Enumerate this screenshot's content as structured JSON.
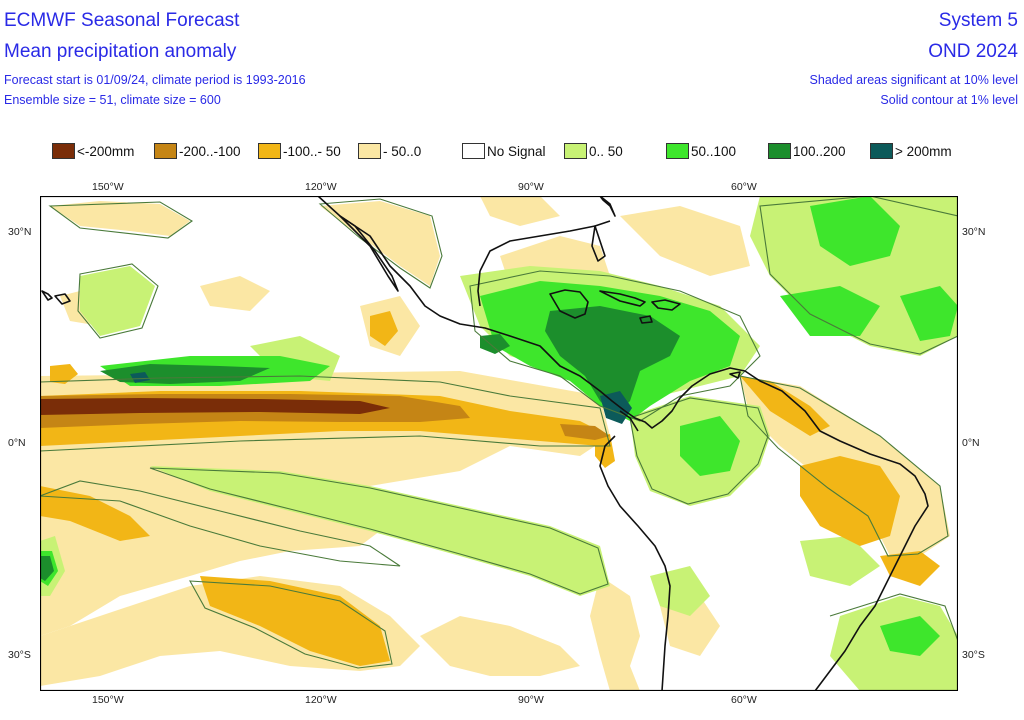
{
  "header": {
    "title": "ECMWF Seasonal Forecast",
    "subtitle": "Mean precipitation anomaly",
    "forecast_info": "Forecast start is 01/09/24, climate period is 1993-2016",
    "ensemble_info": "Ensemble size = 51, climate size = 600",
    "system": "System 5",
    "period": "OND 2024",
    "significance": "Shaded areas significant at 10% level",
    "contour_note": "Solid contour at 1% level"
  },
  "legend": [
    {
      "label": "<-200mm",
      "color": "#7a2d08"
    },
    {
      "label": "-200..-100",
      "color": "#c58515"
    },
    {
      "label": "-100..- 50",
      "color": "#f2b616"
    },
    {
      "label": "- 50..0",
      "color": "#fbe7a4"
    },
    {
      "label": "No Signal",
      "color": "#ffffff"
    },
    {
      "label": "0.. 50",
      "color": "#c8f275"
    },
    {
      "label": "50..100",
      "color": "#3ee62c"
    },
    {
      "label": "100..200",
      "color": "#1c8e2c"
    },
    {
      "label": "> 200mm",
      "color": "#0c5a5a"
    }
  ],
  "axes": {
    "top_lon": [
      "150°W",
      "120°W",
      "90°W",
      "60°W"
    ],
    "bottom_lon": [
      "150°W",
      "120°W",
      "90°W",
      "60°W"
    ],
    "left_lat": [
      "30°N",
      "0°N",
      "30°S"
    ],
    "right_lat": [
      "30°N",
      "0°N",
      "30°S"
    ]
  },
  "map_style": {
    "coast_color": "#111111",
    "contour_color": "#4a7a3a",
    "frame_color": "#000000"
  }
}
